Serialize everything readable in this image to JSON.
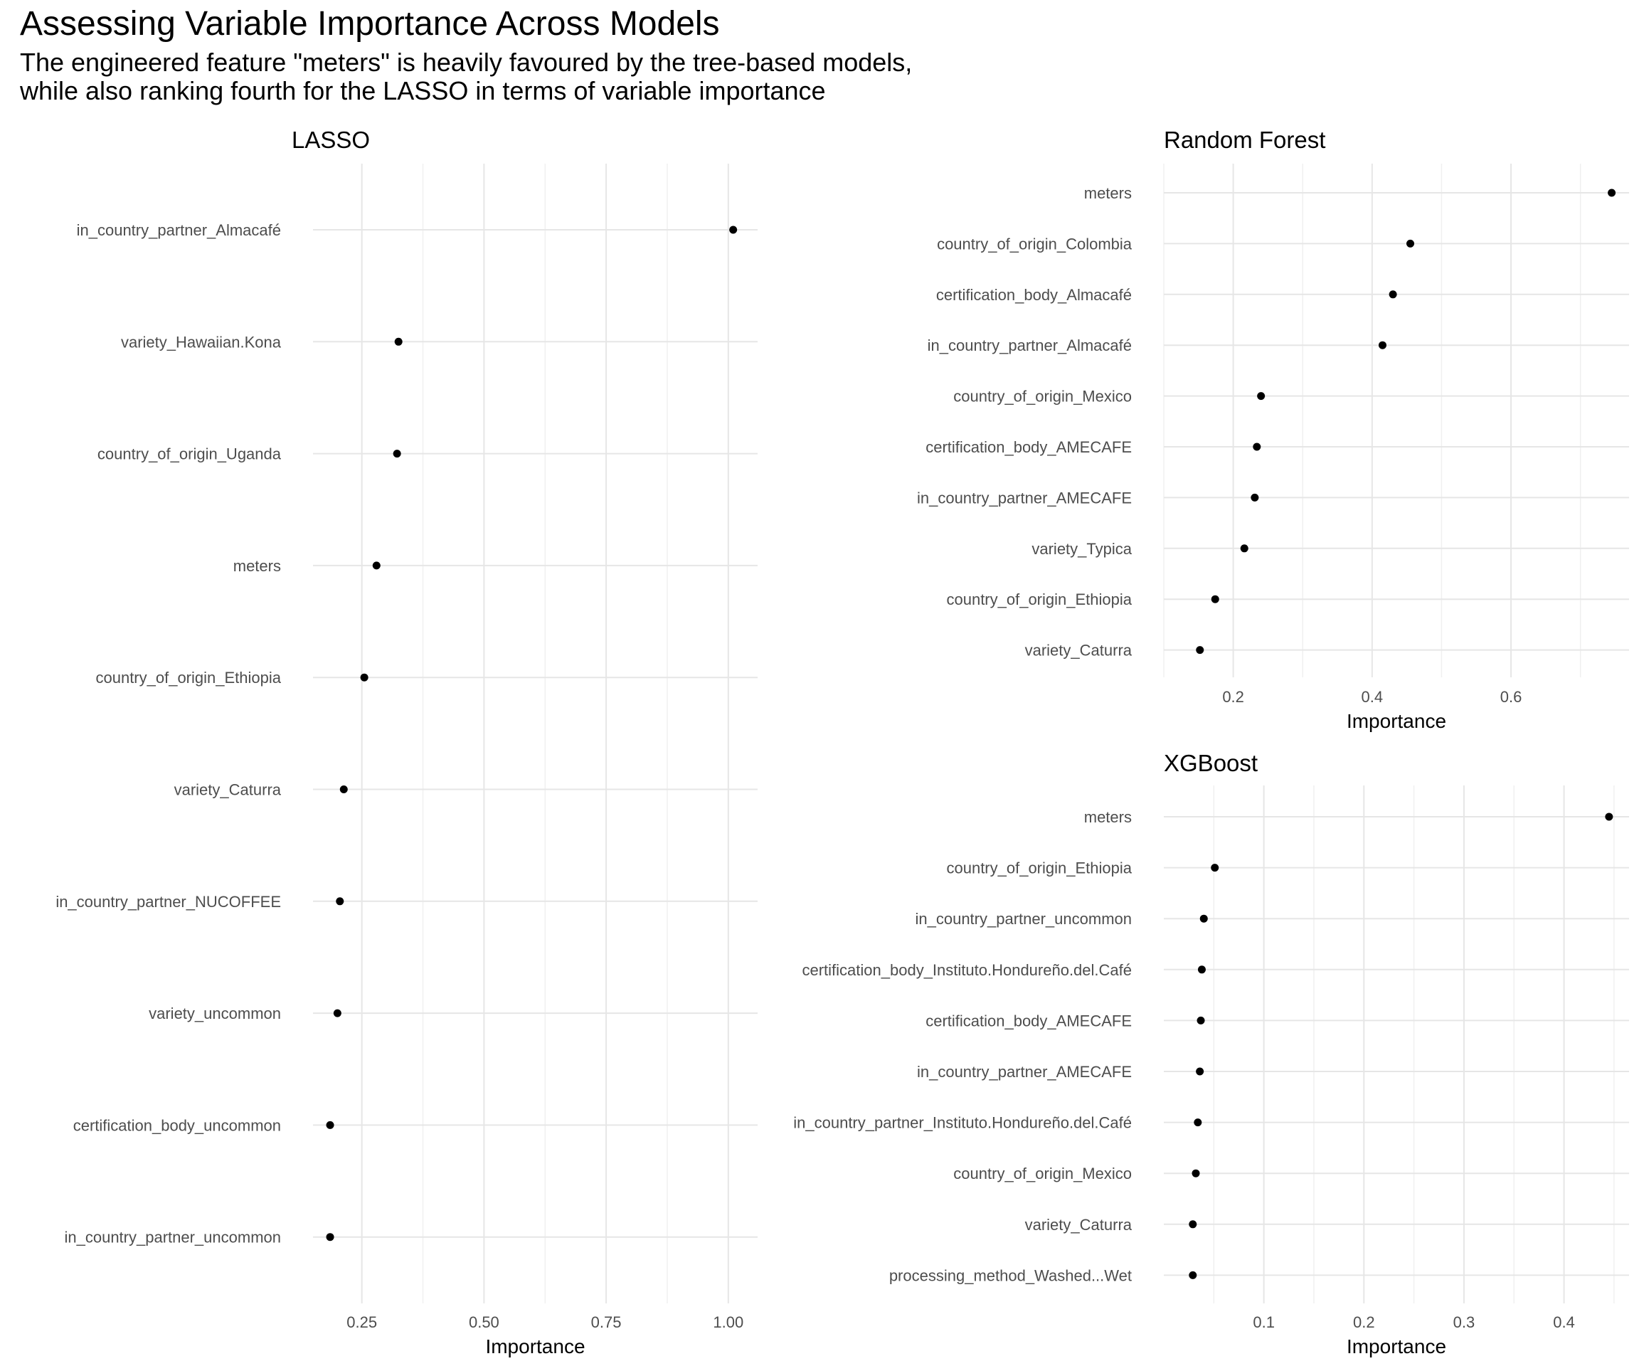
{
  "title": "Assessing Variable Importance Across Models",
  "subtitle": [
    "The engineered feature \"meters\" is heavily favoured by the tree-based models,",
    "while also ranking fourth for the LASSO in terms of variable importance"
  ],
  "chart_data": [
    {
      "type": "scatter",
      "title": "LASSO",
      "xlabel": "Importance",
      "ylabel": "",
      "xlim": [
        0.15,
        1.06
      ],
      "xticks": [
        0.25,
        0.5,
        0.75,
        1.0
      ],
      "xtick_labels": [
        "0.25",
        "0.50",
        "0.75",
        "1.00"
      ],
      "grid": true,
      "categories": [
        "in_country_partner_Almacafé",
        "variety_Hawaiian.Kona",
        "country_of_origin_Uganda",
        "meters",
        "country_of_origin_Ethiopia",
        "variety_Caturra",
        "in_country_partner_NUCOFFEE",
        "variety_uncommon",
        "certification_body_uncommon",
        "in_country_partner_uncommon"
      ],
      "values": [
        1.01,
        0.325,
        0.322,
        0.28,
        0.255,
        0.213,
        0.205,
        0.2,
        0.185,
        0.185
      ]
    },
    {
      "type": "scatter",
      "title": "Random Forest",
      "xlabel": "Importance",
      "ylabel": "",
      "xlim": [
        0.1,
        0.77
      ],
      "xticks": [
        0.2,
        0.4,
        0.6
      ],
      "xtick_labels": [
        "0.2",
        "0.4",
        "0.6"
      ],
      "grid": true,
      "categories": [
        "meters",
        "country_of_origin_Colombia",
        "certification_body_Almacafé",
        "in_country_partner_Almacafé",
        "country_of_origin_Mexico",
        "certification_body_AMECAFE",
        "in_country_partner_AMECAFE",
        "variety_Typica",
        "country_of_origin_Ethiopia",
        "variety_Caturra"
      ],
      "values": [
        0.745,
        0.455,
        0.43,
        0.415,
        0.24,
        0.234,
        0.231,
        0.216,
        0.174,
        0.152
      ]
    },
    {
      "type": "scatter",
      "title": "XGBoost",
      "xlabel": "Importance",
      "ylabel": "",
      "xlim": [
        0.0,
        0.465
      ],
      "xticks": [
        0.1,
        0.2,
        0.3,
        0.4
      ],
      "xtick_labels": [
        "0.1",
        "0.2",
        "0.3",
        "0.4"
      ],
      "grid": true,
      "categories": [
        "meters",
        "country_of_origin_Ethiopia",
        "in_country_partner_uncommon",
        "certification_body_Instituto.Hondureño.del.Café",
        "certification_body_AMECAFE",
        "in_country_partner_AMECAFE",
        "in_country_partner_Instituto.Hondureño.del.Café",
        "country_of_origin_Mexico",
        "variety_Caturra",
        "processing_method_Washed...Wet"
      ],
      "values": [
        0.445,
        0.051,
        0.04,
        0.038,
        0.037,
        0.036,
        0.034,
        0.032,
        0.029,
        0.029
      ]
    }
  ]
}
